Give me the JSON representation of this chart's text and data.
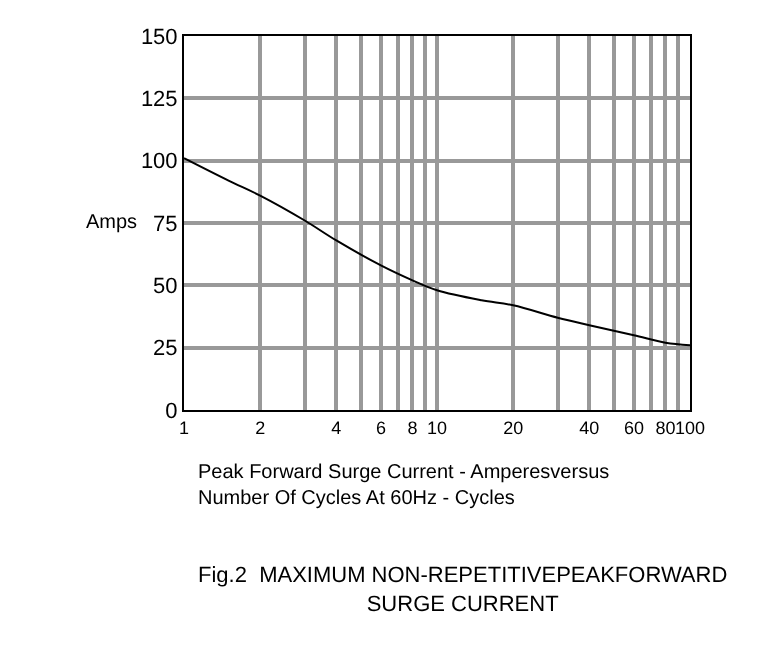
{
  "chart_data": {
    "type": "line",
    "title": "Fig.2  MAXIMUM NON-REPETITIVEPEAKFORWARD\nSURGE CURRENT",
    "xlabel": "Peak Forward Surge Current - Amperesversus\nNumber Of Cycles At 60Hz - Cycles",
    "ylabel": "Amps",
    "x": [
      1,
      1.5,
      2,
      3,
      4,
      6,
      8,
      10,
      15,
      20,
      30,
      40,
      60,
      80,
      100
    ],
    "series": [
      {
        "color": "#000000",
        "values": [
          101,
          92,
          86,
          76,
          68,
          58,
          52,
          48,
          44,
          42,
          37,
          34,
          30,
          27,
          26
        ]
      }
    ],
    "log": "x",
    "xlim": [
      1,
      100
    ],
    "xticks": [
      1,
      2,
      {
        "value": 3,
        "label": null
      },
      4,
      {
        "value": 5,
        "label": null
      },
      6,
      {
        "value": 7,
        "label": null
      },
      8,
      {
        "value": 9,
        "label": null
      },
      10,
      20,
      {
        "value": 30,
        "label": null
      },
      40,
      {
        "value": 50,
        "label": null
      },
      60,
      {
        "value": 70,
        "label": null
      },
      80,
      {
        "value": 90,
        "label": null
      },
      100
    ],
    "ylim": [
      0,
      150
    ],
    "yticks": [
      0,
      25,
      50,
      75,
      100,
      125,
      150
    ],
    "grid": true,
    "legend": false,
    "marker": "none",
    "line_style": "solid"
  }
}
